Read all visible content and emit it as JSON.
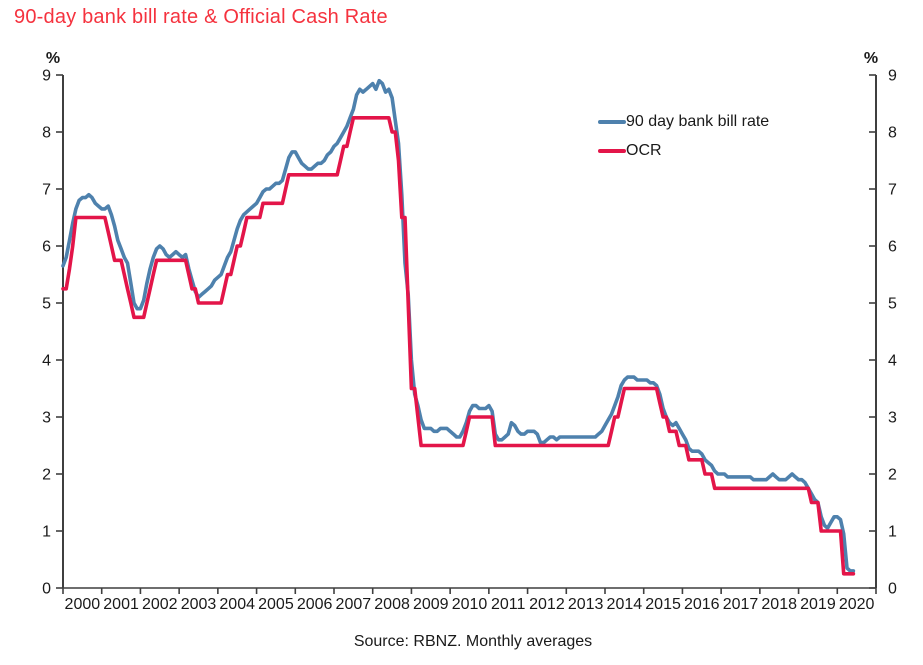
{
  "title": "90-day bank bill rate & Official Cash Rate",
  "source_note": "Source: RBNZ. Monthly averages",
  "legend": {
    "items": [
      {
        "label": "90 day bank bill rate",
        "color": "#4e81ad"
      },
      {
        "label": "OCR",
        "color": "#e31549"
      }
    ]
  },
  "colors": {
    "title": "#f5323e",
    "axis": "#3f3f3f",
    "tick_text": "#1a1a1a",
    "background": "#ffffff"
  },
  "chart_data": {
    "type": "line",
    "title": "90-day bank bill rate & Official Cash Rate",
    "unit_left": "%",
    "unit_right": "%",
    "ylim": [
      0,
      9
    ],
    "y_ticks": [
      0,
      1,
      2,
      3,
      4,
      5,
      6,
      7,
      8,
      9
    ],
    "x_tick_labels": [
      "2000",
      "2001",
      "2002",
      "2003",
      "2004",
      "2005",
      "2006",
      "2007",
      "2008",
      "2009",
      "2010",
      "2011",
      "2012",
      "2013",
      "2014",
      "2015",
      "2016",
      "2017",
      "2018",
      "2019",
      "2020"
    ],
    "frequency": "monthly",
    "x_range": [
      "2000-01",
      "2020-06"
    ],
    "grid": false,
    "legend_position": "inside-top-right",
    "series": [
      {
        "name": "90 day bank bill rate",
        "color": "#4e81ad",
        "values": [
          5.65,
          5.8,
          6.1,
          6.4,
          6.65,
          6.8,
          6.85,
          6.85,
          6.9,
          6.85,
          6.75,
          6.7,
          6.65,
          6.65,
          6.7,
          6.55,
          6.35,
          6.1,
          5.95,
          5.8,
          5.7,
          5.35,
          5.0,
          4.9,
          4.9,
          5.05,
          5.35,
          5.6,
          5.8,
          5.95,
          6.0,
          5.95,
          5.85,
          5.8,
          5.85,
          5.9,
          5.85,
          5.8,
          5.85,
          5.6,
          5.4,
          5.2,
          5.1,
          5.15,
          5.2,
          5.25,
          5.3,
          5.4,
          5.45,
          5.5,
          5.65,
          5.8,
          5.9,
          6.1,
          6.3,
          6.45,
          6.55,
          6.6,
          6.65,
          6.7,
          6.75,
          6.85,
          6.95,
          7.0,
          7.0,
          7.05,
          7.1,
          7.1,
          7.15,
          7.35,
          7.55,
          7.65,
          7.65,
          7.55,
          7.45,
          7.4,
          7.35,
          7.35,
          7.4,
          7.45,
          7.45,
          7.5,
          7.6,
          7.65,
          7.75,
          7.8,
          7.9,
          8.0,
          8.1,
          8.25,
          8.4,
          8.65,
          8.75,
          8.7,
          8.75,
          8.8,
          8.85,
          8.75,
          8.9,
          8.85,
          8.7,
          8.75,
          8.6,
          8.2,
          7.8,
          6.9,
          5.7,
          5.15,
          4.0,
          3.4,
          3.2,
          2.95,
          2.8,
          2.8,
          2.8,
          2.75,
          2.75,
          2.8,
          2.8,
          2.8,
          2.75,
          2.7,
          2.65,
          2.65,
          2.75,
          2.9,
          3.1,
          3.2,
          3.2,
          3.15,
          3.15,
          3.15,
          3.2,
          3.1,
          2.7,
          2.6,
          2.6,
          2.65,
          2.7,
          2.9,
          2.85,
          2.75,
          2.7,
          2.7,
          2.75,
          2.75,
          2.75,
          2.7,
          2.55,
          2.55,
          2.6,
          2.65,
          2.65,
          2.6,
          2.65,
          2.65,
          2.65,
          2.65,
          2.65,
          2.65,
          2.65,
          2.65,
          2.65,
          2.65,
          2.65,
          2.65,
          2.7,
          2.75,
          2.85,
          2.95,
          3.05,
          3.2,
          3.35,
          3.55,
          3.65,
          3.7,
          3.7,
          3.7,
          3.65,
          3.65,
          3.65,
          3.65,
          3.6,
          3.6,
          3.55,
          3.4,
          3.15,
          3.0,
          2.9,
          2.85,
          2.9,
          2.8,
          2.7,
          2.6,
          2.45,
          2.4,
          2.4,
          2.4,
          2.35,
          2.25,
          2.2,
          2.15,
          2.05,
          2.0,
          2.0,
          2.0,
          1.95,
          1.95,
          1.95,
          1.95,
          1.95,
          1.95,
          1.95,
          1.95,
          1.9,
          1.9,
          1.9,
          1.9,
          1.9,
          1.95,
          2.0,
          1.95,
          1.9,
          1.9,
          1.9,
          1.95,
          2.0,
          1.95,
          1.9,
          1.9,
          1.85,
          1.75,
          1.65,
          1.55,
          1.5,
          1.25,
          1.1,
          1.05,
          1.15,
          1.25,
          1.25,
          1.2,
          0.95,
          0.35,
          0.3,
          0.3
        ]
      },
      {
        "name": "OCR",
        "color": "#e31549",
        "values": [
          5.25,
          5.25,
          5.6,
          6.0,
          6.5,
          6.5,
          6.5,
          6.5,
          6.5,
          6.5,
          6.5,
          6.5,
          6.5,
          6.5,
          6.25,
          6.0,
          5.75,
          5.75,
          5.75,
          5.5,
          5.25,
          5.0,
          4.75,
          4.75,
          4.75,
          4.75,
          5.0,
          5.25,
          5.5,
          5.75,
          5.75,
          5.75,
          5.75,
          5.75,
          5.75,
          5.75,
          5.75,
          5.75,
          5.75,
          5.5,
          5.25,
          5.25,
          5.0,
          5.0,
          5.0,
          5.0,
          5.0,
          5.0,
          5.0,
          5.0,
          5.25,
          5.5,
          5.5,
          5.75,
          6.0,
          6.0,
          6.25,
          6.5,
          6.5,
          6.5,
          6.5,
          6.5,
          6.75,
          6.75,
          6.75,
          6.75,
          6.75,
          6.75,
          6.75,
          7.0,
          7.25,
          7.25,
          7.25,
          7.25,
          7.25,
          7.25,
          7.25,
          7.25,
          7.25,
          7.25,
          7.25,
          7.25,
          7.25,
          7.25,
          7.25,
          7.25,
          7.5,
          7.75,
          7.75,
          8.0,
          8.25,
          8.25,
          8.25,
          8.25,
          8.25,
          8.25,
          8.25,
          8.25,
          8.25,
          8.25,
          8.25,
          8.25,
          8.0,
          8.0,
          7.5,
          6.5,
          6.5,
          5.0,
          3.5,
          3.5,
          3.0,
          2.5,
          2.5,
          2.5,
          2.5,
          2.5,
          2.5,
          2.5,
          2.5,
          2.5,
          2.5,
          2.5,
          2.5,
          2.5,
          2.5,
          2.75,
          3.0,
          3.0,
          3.0,
          3.0,
          3.0,
          3.0,
          3.0,
          3.0,
          2.5,
          2.5,
          2.5,
          2.5,
          2.5,
          2.5,
          2.5,
          2.5,
          2.5,
          2.5,
          2.5,
          2.5,
          2.5,
          2.5,
          2.5,
          2.5,
          2.5,
          2.5,
          2.5,
          2.5,
          2.5,
          2.5,
          2.5,
          2.5,
          2.5,
          2.5,
          2.5,
          2.5,
          2.5,
          2.5,
          2.5,
          2.5,
          2.5,
          2.5,
          2.5,
          2.5,
          2.75,
          3.0,
          3.0,
          3.25,
          3.5,
          3.5,
          3.5,
          3.5,
          3.5,
          3.5,
          3.5,
          3.5,
          3.5,
          3.5,
          3.5,
          3.25,
          3.0,
          3.0,
          2.75,
          2.75,
          2.75,
          2.5,
          2.5,
          2.5,
          2.25,
          2.25,
          2.25,
          2.25,
          2.25,
          2.0,
          2.0,
          2.0,
          1.75,
          1.75,
          1.75,
          1.75,
          1.75,
          1.75,
          1.75,
          1.75,
          1.75,
          1.75,
          1.75,
          1.75,
          1.75,
          1.75,
          1.75,
          1.75,
          1.75,
          1.75,
          1.75,
          1.75,
          1.75,
          1.75,
          1.75,
          1.75,
          1.75,
          1.75,
          1.75,
          1.75,
          1.75,
          1.75,
          1.5,
          1.5,
          1.5,
          1.0,
          1.0,
          1.0,
          1.0,
          1.0,
          1.0,
          1.0,
          0.25,
          0.25,
          0.25,
          0.25
        ]
      }
    ]
  }
}
